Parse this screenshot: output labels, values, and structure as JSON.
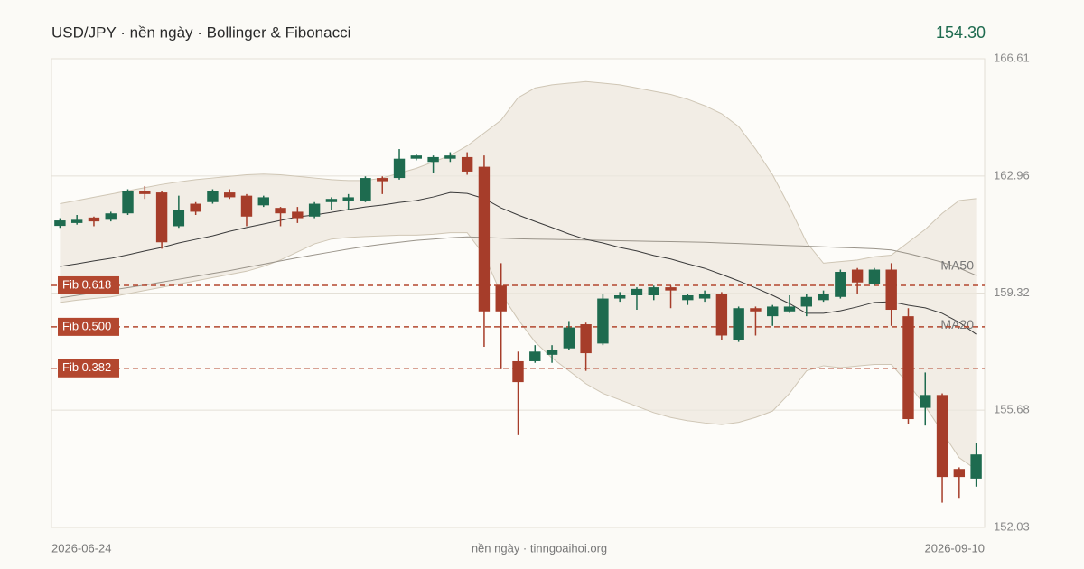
{
  "chart_data": {
    "type": "candlestick",
    "title": "USD/JPY · nền ngày · Bollinger & Fibonacci",
    "last_price": "154.30",
    "source": "nền ngày · tinngoaihoi.org",
    "categories": [
      "2026-06-24",
      null,
      null,
      null,
      null,
      null,
      null,
      null,
      null,
      null,
      null,
      null,
      null,
      null,
      null,
      null,
      null,
      null,
      null,
      null,
      null,
      null,
      null,
      null,
      null,
      null,
      null,
      null,
      null,
      null,
      null,
      null,
      null,
      null,
      null,
      null,
      null,
      null,
      null,
      null,
      null,
      null,
      null,
      null,
      null,
      null,
      null,
      null,
      null,
      null,
      null,
      null,
      null,
      null,
      "2026-09-10"
    ],
    "open": [
      161.41,
      161.5,
      161.67,
      161.6,
      161.8,
      162.5,
      162.45,
      161.4,
      162.1,
      162.15,
      162.45,
      162.35,
      162.05,
      161.97,
      161.85,
      161.7,
      162.15,
      162.2,
      162.2,
      162.9,
      162.9,
      163.5,
      163.4,
      163.5,
      163.55,
      163.25,
      159.55,
      157.2,
      157.2,
      157.4,
      157.6,
      158.35,
      157.75,
      159.15,
      159.25,
      159.25,
      159.5,
      159.1,
      159.15,
      159.3,
      157.85,
      158.85,
      158.6,
      158.75,
      158.9,
      159.1,
      159.2,
      160.05,
      159.6,
      160.05,
      158.6,
      155.75,
      156.15,
      153.85,
      153.55
    ],
    "high": [
      161.65,
      161.75,
      161.7,
      161.85,
      162.55,
      162.65,
      162.5,
      162.35,
      162.15,
      162.55,
      162.55,
      162.4,
      162.35,
      162.0,
      162.0,
      162.15,
      162.3,
      162.4,
      162.95,
      162.95,
      163.8,
      163.65,
      163.6,
      163.7,
      163.7,
      163.6,
      160.25,
      157.5,
      157.7,
      157.7,
      158.45,
      158.4,
      159.3,
      159.35,
      159.5,
      159.55,
      159.55,
      159.3,
      159.4,
      159.35,
      158.9,
      158.9,
      158.95,
      159.25,
      159.3,
      159.4,
      160.05,
      160.1,
      160.1,
      160.25,
      158.85,
      156.85,
      156.2,
      153.9,
      154.65
    ],
    "low": [
      161.35,
      161.45,
      161.4,
      161.55,
      161.75,
      162.25,
      160.7,
      161.35,
      161.75,
      162.1,
      162.25,
      161.4,
      162.0,
      161.4,
      161.5,
      161.65,
      161.9,
      161.9,
      162.15,
      162.4,
      162.85,
      163.45,
      163.05,
      163.4,
      163.0,
      157.65,
      156.95,
      154.9,
      157.15,
      157.15,
      157.55,
      156.9,
      157.7,
      159.05,
      158.8,
      159.1,
      158.85,
      158.95,
      159.05,
      157.85,
      157.8,
      158.0,
      158.3,
      158.7,
      158.6,
      159.05,
      159.15,
      159.3,
      159.55,
      158.3,
      155.25,
      155.2,
      152.8,
      152.95,
      153.3
    ],
    "close": [
      161.58,
      161.6,
      161.55,
      161.8,
      162.5,
      162.4,
      160.9,
      161.9,
      161.85,
      162.5,
      162.3,
      161.7,
      162.3,
      161.8,
      161.65,
      162.1,
      162.25,
      162.3,
      162.9,
      162.8,
      163.5,
      163.6,
      163.55,
      163.6,
      163.1,
      158.75,
      158.75,
      156.55,
      157.5,
      157.55,
      158.25,
      157.45,
      159.15,
      159.25,
      159.45,
      159.5,
      159.4,
      159.25,
      159.3,
      158.0,
      158.85,
      158.75,
      158.9,
      158.9,
      159.2,
      159.3,
      159.98,
      159.65,
      160.05,
      158.8,
      155.4,
      156.15,
      153.6,
      153.6,
      154.3
    ],
    "up_color": "#1e6b4f",
    "down_color": "#a63d2a",
    "bands": {
      "color": "#ece7dd",
      "edge_color": "#cfc6b5",
      "upper": [
        162.1,
        162.2,
        162.3,
        162.4,
        162.5,
        162.6,
        162.7,
        162.78,
        162.85,
        162.9,
        162.95,
        163.0,
        163.02,
        163.0,
        162.95,
        162.9,
        162.85,
        162.82,
        162.82,
        162.9,
        163.05,
        163.2,
        163.4,
        163.6,
        163.9,
        164.3,
        164.7,
        165.4,
        165.7,
        165.8,
        165.85,
        165.9,
        165.85,
        165.8,
        165.7,
        165.6,
        165.5,
        165.35,
        165.15,
        164.9,
        164.5,
        163.8,
        163.0,
        162.0,
        160.9,
        160.25,
        160.3,
        160.35,
        160.45,
        160.5,
        160.9,
        161.3,
        161.8,
        162.2,
        162.26
      ],
      "lower": [
        159.03,
        159.1,
        159.15,
        159.2,
        159.3,
        159.4,
        159.5,
        159.6,
        159.7,
        159.8,
        159.9,
        160.0,
        160.15,
        160.35,
        160.6,
        160.85,
        161.0,
        161.05,
        161.08,
        161.1,
        161.12,
        161.12,
        161.15,
        161.2,
        161.2,
        160.5,
        159.3,
        158.5,
        157.8,
        157.3,
        156.9,
        156.5,
        156.2,
        156.0,
        155.8,
        155.6,
        155.45,
        155.35,
        155.28,
        155.23,
        155.3,
        155.45,
        155.65,
        156.2,
        156.9,
        157.06,
        157.0,
        157.05,
        157.1,
        157.1,
        156.5,
        155.8,
        155.0,
        154.2,
        153.83
      ]
    },
    "series": [
      {
        "name": "MA50",
        "color": "#9a948a",
        "values": [
          159.17,
          159.25,
          159.33,
          159.41,
          159.49,
          159.57,
          159.66,
          159.75,
          159.84,
          159.93,
          160.02,
          160.12,
          160.22,
          160.32,
          160.42,
          160.51,
          160.6,
          160.69,
          160.77,
          160.84,
          160.9,
          160.96,
          161.0,
          161.04,
          161.07,
          161.05,
          161.03,
          161.01,
          161.0,
          160.99,
          160.98,
          160.97,
          160.96,
          160.95,
          160.94,
          160.93,
          160.92,
          160.91,
          160.9,
          160.88,
          160.86,
          160.84,
          160.82,
          160.8,
          160.78,
          160.76,
          160.74,
          160.72,
          160.7,
          160.66,
          160.55,
          160.42,
          160.28,
          160.1,
          159.87
        ]
      },
      {
        "name": "MA20",
        "color": "#3a3a3a",
        "values": [
          160.15,
          160.23,
          160.32,
          160.4,
          160.51,
          160.63,
          160.74,
          160.88,
          160.99,
          161.1,
          161.24,
          161.36,
          161.47,
          161.58,
          161.69,
          161.75,
          161.83,
          161.92,
          162.0,
          162.06,
          162.14,
          162.2,
          162.31,
          162.45,
          162.42,
          162.26,
          161.97,
          161.75,
          161.55,
          161.36,
          161.16,
          160.99,
          160.88,
          160.74,
          160.63,
          160.49,
          160.38,
          160.23,
          160.09,
          159.9,
          159.7,
          159.48,
          159.25,
          158.99,
          158.69,
          158.69,
          158.77,
          158.89,
          159.03,
          159.05,
          158.94,
          158.86,
          158.69,
          158.41,
          158.04
        ]
      }
    ],
    "fib_color": "#b3472f",
    "fib_levels": [
      {
        "label": "Fib 0.618",
        "value": 159.56
      },
      {
        "label": "Fib 0.500",
        "value": 158.27
      },
      {
        "label": "Fib 0.382",
        "value": 156.98
      }
    ],
    "ylim": [
      152.03,
      166.61
    ],
    "yticks": [
      152.03,
      155.68,
      159.32,
      162.96,
      166.61
    ],
    "grid": true
  }
}
